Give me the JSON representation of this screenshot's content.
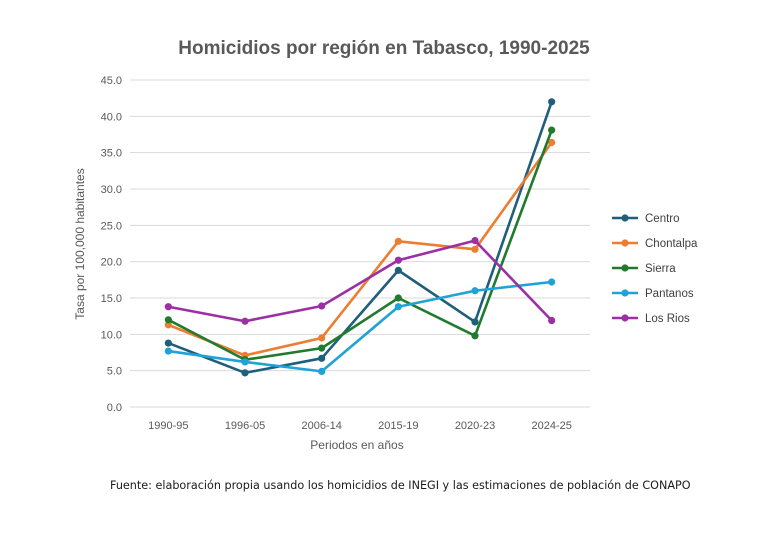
{
  "source_note": "Fuente: elaboración propia usando los homicidios de INEGI y las estimaciones de población de CONAPO",
  "chart_data": {
    "type": "line",
    "title": "Homicidios por región en Tabasco, 1990-2025",
    "xlabel": "Periodos en años",
    "ylabel": "Tasa por 100,000 habitantes",
    "categories": [
      "1990-95",
      "1996-05",
      "2006-14",
      "2015-19",
      "2020-23",
      "2024-25"
    ],
    "ylim": [
      0,
      45
    ],
    "yticks": [
      "0.0",
      "5.0",
      "10.0",
      "15.0",
      "20.0",
      "25.0",
      "30.0",
      "35.0",
      "40.0",
      "45.0"
    ],
    "grid": true,
    "legend_position": "right",
    "series": [
      {
        "name": "Centro",
        "color": "#1f5f7a",
        "values": [
          8.8,
          4.7,
          6.7,
          18.8,
          11.7,
          42.0
        ]
      },
      {
        "name": "Chontalpa",
        "color": "#ed7d31",
        "values": [
          11.3,
          7.1,
          9.5,
          22.8,
          21.7,
          36.4
        ]
      },
      {
        "name": "Sierra",
        "color": "#217a2e",
        "values": [
          12.0,
          6.5,
          8.1,
          15.0,
          9.8,
          38.1
        ]
      },
      {
        "name": "Pantanos",
        "color": "#1fa2d6",
        "values": [
          7.7,
          6.2,
          4.9,
          13.8,
          16.0,
          17.2
        ]
      },
      {
        "name": "Los Rios",
        "color": "#9b2fa3",
        "values": [
          13.8,
          11.8,
          13.9,
          20.2,
          22.9,
          11.9
        ]
      }
    ]
  }
}
